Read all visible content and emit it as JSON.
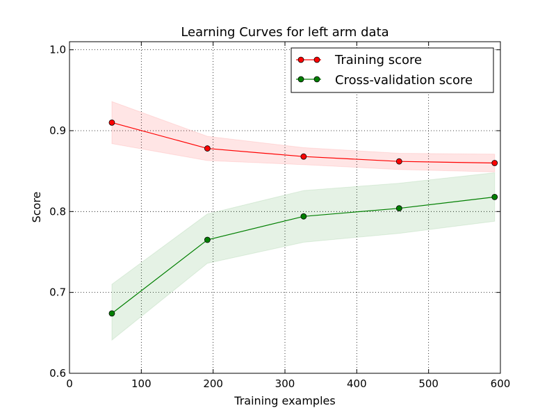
{
  "chart_data": {
    "type": "line",
    "title": "Learning Curves for left arm data",
    "xlabel": "Training examples",
    "ylabel": "Score",
    "xlim": [
      0,
      600
    ],
    "ylim": [
      0.6,
      1.01
    ],
    "xticks": [
      0,
      100,
      200,
      300,
      400,
      500,
      600
    ],
    "xtick_labels": [
      "0",
      "100",
      "200",
      "300",
      "400",
      "500",
      "600"
    ],
    "yticks": [
      0.6,
      0.7,
      0.8,
      0.9,
      1.0
    ],
    "ytick_labels": [
      "0.6",
      "0.7",
      "0.8",
      "0.9",
      "1.0"
    ],
    "grid": true,
    "legend_position": "top-right",
    "x": [
      59,
      192,
      326,
      459,
      592
    ],
    "series": [
      {
        "name": "Training score",
        "color": "#ff0000",
        "fill_color": "#ff0000",
        "values": [
          0.91,
          0.878,
          0.868,
          0.862,
          0.86
        ],
        "band_upper": [
          0.936,
          0.893,
          0.879,
          0.872,
          0.871
        ],
        "band_lower": [
          0.884,
          0.863,
          0.858,
          0.852,
          0.849
        ]
      },
      {
        "name": "Cross-validation score",
        "color": "#007f00",
        "fill_color": "#008000",
        "values": [
          0.674,
          0.765,
          0.794,
          0.804,
          0.818
        ],
        "band_upper": [
          0.71,
          0.797,
          0.826,
          0.835,
          0.848
        ],
        "band_lower": [
          0.641,
          0.736,
          0.762,
          0.773,
          0.788
        ]
      }
    ]
  }
}
